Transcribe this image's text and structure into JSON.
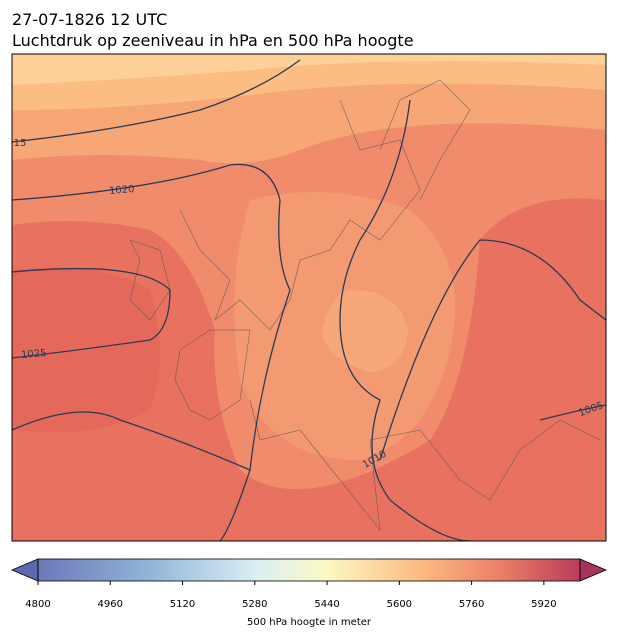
{
  "header": {
    "title": "27-07-1826 12 UTC",
    "subtitle": "Luchtdruk op zeeniveau in hPa en 500 hPa hoogte"
  },
  "contour_labels": [
    "15",
    "1020",
    "1025",
    "1010",
    "1005"
  ],
  "colorbar": {
    "label": "500 hPa hoogte in meter",
    "clim": [
      4800,
      6000
    ],
    "ticks": [
      4800,
      4960,
      5120,
      5280,
      5440,
      5600,
      5760,
      5920
    ]
  }
}
